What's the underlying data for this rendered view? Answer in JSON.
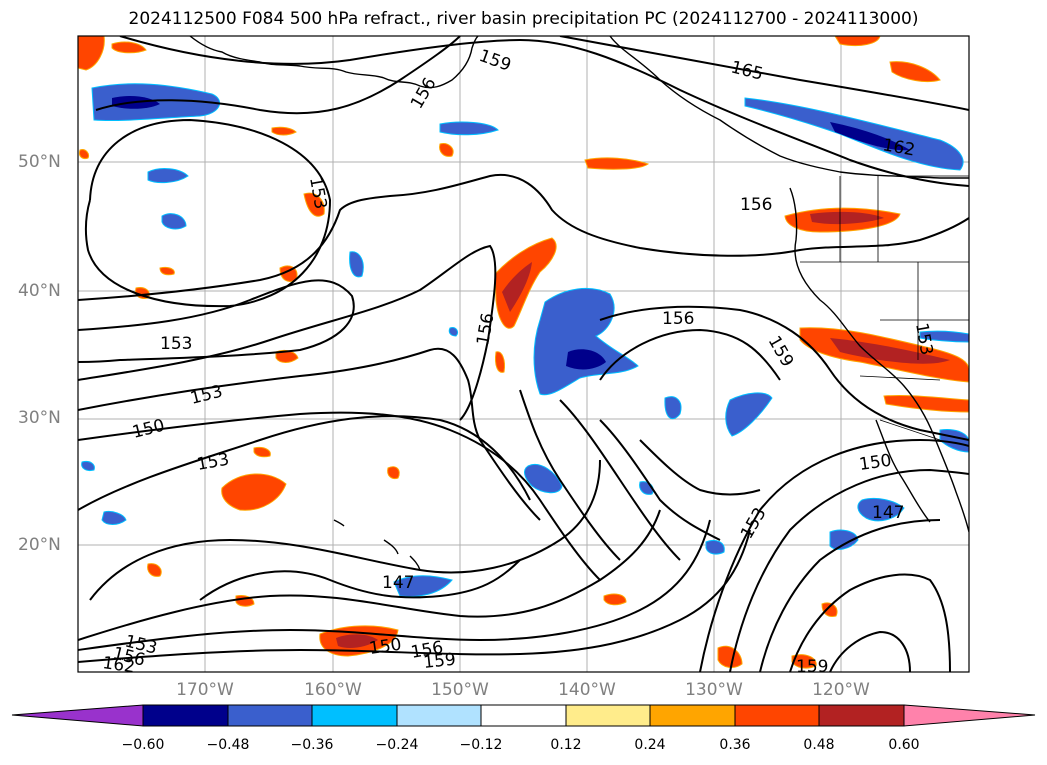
{
  "title": "2024112500 F084 500 hPa refract., river basin precipitation PC (2024112700 - 2024113000)",
  "lat_labels": [
    "50°N",
    "40°N",
    "30°N",
    "20°N"
  ],
  "lon_labels": [
    "170°W",
    "160°W",
    "150°W",
    "140°W",
    "130°W",
    "120°W"
  ],
  "contour_labels": [
    "159",
    "165",
    "156",
    "162",
    "156",
    "156",
    "156",
    "159",
    "153",
    "153",
    "150",
    "153",
    "150",
    "153",
    "147",
    "147",
    "150",
    "156",
    "159",
    "153",
    "156",
    "162",
    "159",
    "153",
    "153"
  ],
  "colorbar": {
    "ticks": [
      "−0.60",
      "−0.48",
      "−0.36",
      "−0.24",
      "−0.12",
      "0.12",
      "0.24",
      "0.36",
      "0.48",
      "0.60"
    ],
    "colors": [
      "#9932CC",
      "#00008B",
      "#3A5FCD",
      "#00BFFF",
      "#B0E2FF",
      "#FFFFFF",
      "#FFEC8B",
      "#FFA500",
      "#FF4500",
      "#B22222",
      "#FF82AB"
    ]
  }
}
